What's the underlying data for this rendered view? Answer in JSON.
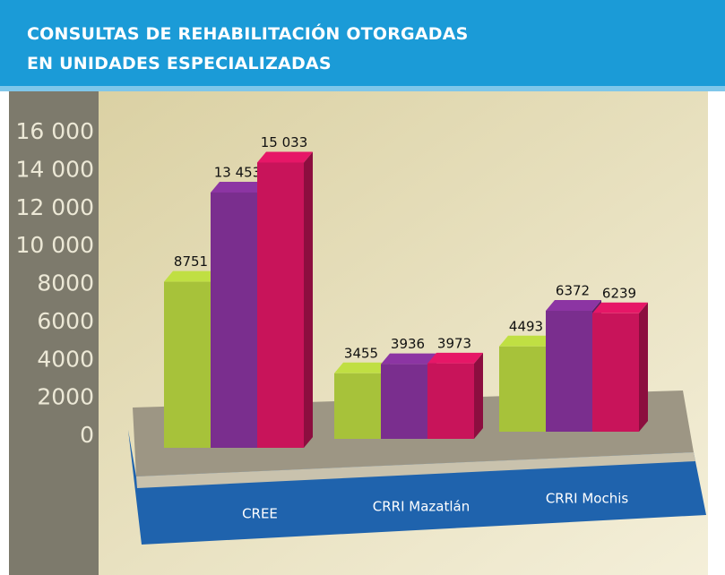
{
  "chart_data": {
    "type": "bar",
    "title": "CONSULTAS DE REHABILITACIÓN OTORGADAS EN UNIDADES ESPECIALIZADAS",
    "categories": [
      "CREE",
      "CRRI Mazatlán",
      "CRRI Mochis"
    ],
    "series": [
      {
        "color": "#a7c23a",
        "values": [
          8751,
          3455,
          4493
        ],
        "value_labels": [
          "8751",
          "3455",
          "4493"
        ]
      },
      {
        "color": "#7a2e8e",
        "values": [
          13453,
          3936,
          6372
        ],
        "value_labels": [
          "13 453",
          "3936",
          "6372"
        ]
      },
      {
        "color": "#c8145a",
        "values": [
          15033,
          3973,
          6239
        ],
        "value_labels": [
          "15 033",
          "3973",
          "6239"
        ]
      }
    ],
    "ylim": [
      0,
      16000
    ],
    "yticks": [
      0,
      2000,
      4000,
      6000,
      8000,
      {
        "value": 10000,
        "label": "10 000"
      },
      {
        "value": 12000,
        "label": "12 000"
      },
      {
        "value": 14000,
        "label": "14 000"
      },
      {
        "value": 16000,
        "label": "16 000"
      }
    ]
  }
}
